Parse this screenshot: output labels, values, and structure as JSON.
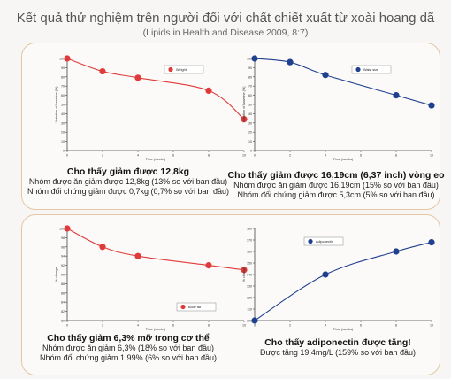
{
  "title": "Kết quả thử nghiệm trên người đối với chất chiết xuất từ xoài hoang dã",
  "subtitle": "(Lipids in Health and Disease 2009, 8:7)",
  "chart_data": [
    {
      "type": "line",
      "x": [
        0,
        2,
        4,
        8,
        10
      ],
      "series": [
        {
          "name": "Weight",
          "values": [
            100,
            86,
            79,
            65,
            34
          ]
        }
      ],
      "xlabel": "Time (weeks)",
      "ylabel": "Variation of baseline (%)",
      "xlim": [
        0,
        10
      ],
      "ylim": [
        0,
        100
      ],
      "yticks": [
        0,
        10,
        20,
        30,
        40,
        50,
        60,
        70,
        80,
        90,
        100
      ],
      "xticks": [
        0,
        2,
        4,
        6,
        8,
        10
      ],
      "color": "#e03a3a",
      "legend": "top-right"
    },
    {
      "type": "line",
      "x": [
        0,
        2,
        4,
        8,
        10
      ],
      "series": [
        {
          "name": "Waist size",
          "values": [
            100,
            96,
            82,
            60,
            49
          ]
        }
      ],
      "xlabel": "Time (weeks)",
      "ylabel": "Variation of baseline (%)",
      "xlim": [
        0,
        10
      ],
      "ylim": [
        0,
        100
      ],
      "yticks": [
        0,
        10,
        20,
        30,
        40,
        50,
        60,
        70,
        80,
        90,
        100
      ],
      "xticks": [
        0,
        2,
        4,
        6,
        8,
        10
      ],
      "color": "#1f3f8f",
      "legend": "top-right"
    },
    {
      "type": "line",
      "x": [
        0,
        2,
        4,
        8,
        10
      ],
      "series": [
        {
          "name": "Body fat",
          "values": [
            100,
            96,
            94,
            92,
            91
          ]
        }
      ],
      "xlabel": "Time (weeks)",
      "ylabel": "% change",
      "xlim": [
        0,
        10
      ],
      "ylim": [
        80,
        100
      ],
      "yticks": [
        80,
        82,
        84,
        86,
        88,
        90,
        92,
        94,
        96,
        98,
        100
      ],
      "xticks": [
        0,
        2,
        4,
        6,
        8,
        10
      ],
      "color": "#e03a3a",
      "legend": "bottom-right"
    },
    {
      "type": "line",
      "x": [
        0,
        4,
        8,
        10
      ],
      "series": [
        {
          "name": "Adiponectin",
          "values": [
            100,
            140,
            160,
            168
          ]
        }
      ],
      "xlabel": "Time (weeks)",
      "ylabel": "% change",
      "xlim": [
        0,
        10
      ],
      "ylim": [
        100,
        180
      ],
      "yticks": [
        100,
        110,
        120,
        130,
        140,
        150,
        160,
        170,
        180
      ],
      "xticks": [
        0,
        2,
        4,
        6,
        8,
        10
      ],
      "color": "#1f3f8f",
      "legend": "top-left"
    }
  ],
  "captions": [
    {
      "head": "Cho thấy giảm được 12,8kg",
      "lines": [
        "Nhóm được ăn giảm được 12,8kg (13% so với ban đầu)",
        "Nhóm đối chứng giảm được 0,7kg (0,7% so với ban đầu)"
      ]
    },
    {
      "head": "Cho thấy giảm được 16,19cm (6,37 inch) vòng eo",
      "lines": [
        "Nhóm được ăn giảm được 16,19cm (15% so với ban đầu)",
        "Nhóm đối chứng giảm được 5,3cm (5% so với ban đầu)"
      ]
    },
    {
      "head": "Cho thấy giảm 6,3% mỡ trong cơ thể",
      "lines": [
        "Nhóm được ăn giảm 6,3% (18% so với ban đầu)",
        "Nhóm đối chứng giảm 1,99% (6% so với ban đầu)"
      ]
    },
    {
      "head": "Cho thấy adiponectin được tăng!",
      "lines": [
        "Được tăng 19,4mg/L (159% so với ban đầu)"
      ]
    }
  ]
}
